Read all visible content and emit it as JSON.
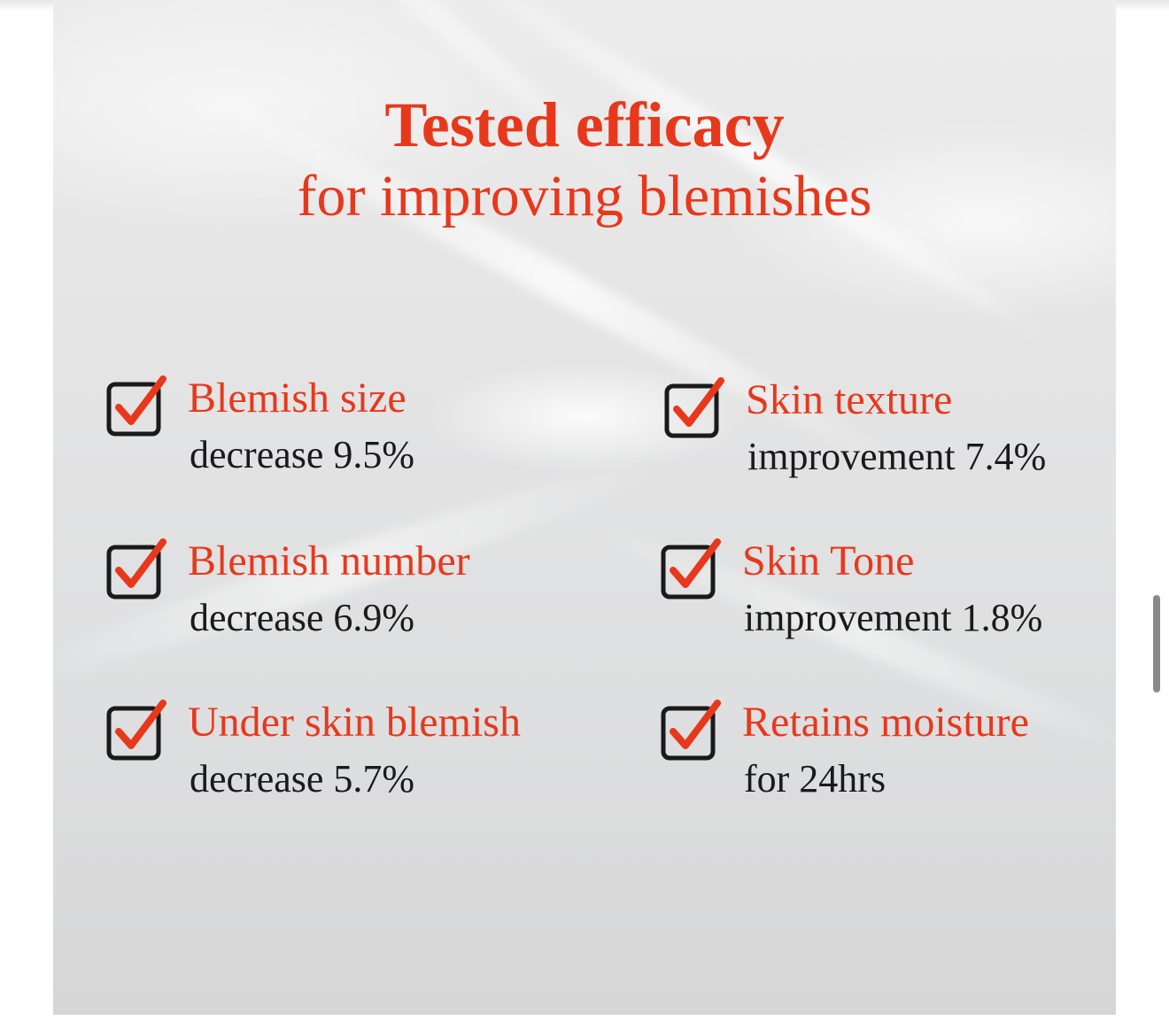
{
  "header": {
    "title": "Tested efficacy",
    "subtitle": "for improving blemishes"
  },
  "colors": {
    "accent": "#e8381c",
    "text": "#1a1a1a"
  },
  "items": [
    {
      "label": "Blemish size",
      "value": "decrease 9.5%",
      "icon": "checkbox-checked-icon"
    },
    {
      "label": "Skin texture",
      "value": "improvement 7.4%",
      "icon": "checkbox-checked-icon"
    },
    {
      "label": "Blemish number",
      "value": "decrease 6.9%",
      "icon": "checkbox-checked-icon"
    },
    {
      "label": "Skin Tone",
      "value": "improvement 1.8%",
      "icon": "checkbox-checked-icon"
    },
    {
      "label": "Under skin blemish",
      "value": "decrease 5.7%",
      "icon": "checkbox-checked-icon"
    },
    {
      "label": "Retains moisture",
      "value": "for 24hrs",
      "icon": "checkbox-checked-icon"
    }
  ]
}
